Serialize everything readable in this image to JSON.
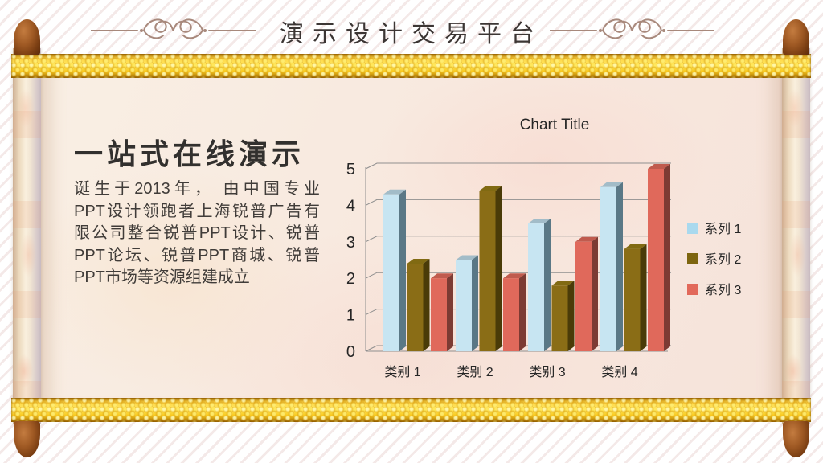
{
  "header": {
    "title": "演示设计交易平台"
  },
  "content": {
    "heading": "一站式在线演示",
    "paragraph_lines": [
      "诞生于2013年， 由中国专业",
      "PPT设计领跑者上海锐普广告有",
      "限公司整合锐普PPT设计、锐普",
      "PPT论坛、锐普PPT商城、锐普",
      "PPT市场等资源组建成立"
    ]
  },
  "chart_data": {
    "type": "bar",
    "style": "3d-clustered-column",
    "title": "Chart Title",
    "categories": [
      "类别 1",
      "类别 2",
      "类别 3",
      "类别 4"
    ],
    "series": [
      {
        "name": "系列 1",
        "values": [
          4.3,
          2.5,
          3.5,
          4.5
        ],
        "front": "#c7e5f2",
        "top": "#a2bcc8",
        "side": "#5a7886",
        "legend": "#a9d9ee"
      },
      {
        "name": "系列 2",
        "values": [
          2.4,
          4.4,
          1.8,
          2.8
        ],
        "front": "#8a6d16",
        "top": "#816a12",
        "side": "#4a3b08",
        "legend": "#7d650f"
      },
      {
        "name": "系列 3",
        "values": [
          2.0,
          2.0,
          3.0,
          5.0
        ],
        "front": "#e0695b",
        "top": "#c05b4e",
        "side": "#7d3b33",
        "legend": "#e2695a"
      }
    ],
    "ylim": [
      0,
      5
    ],
    "yticks": [
      0,
      1,
      2,
      3,
      4,
      5
    ],
    "legend_position": "right",
    "grid": true,
    "axis_color": "#8f8f8f"
  },
  "decor": {
    "gold": "#f2c31d",
    "parchment": "#f8e9df",
    "wood": "#8a4a1b",
    "ornament_color": "#a8897c"
  }
}
